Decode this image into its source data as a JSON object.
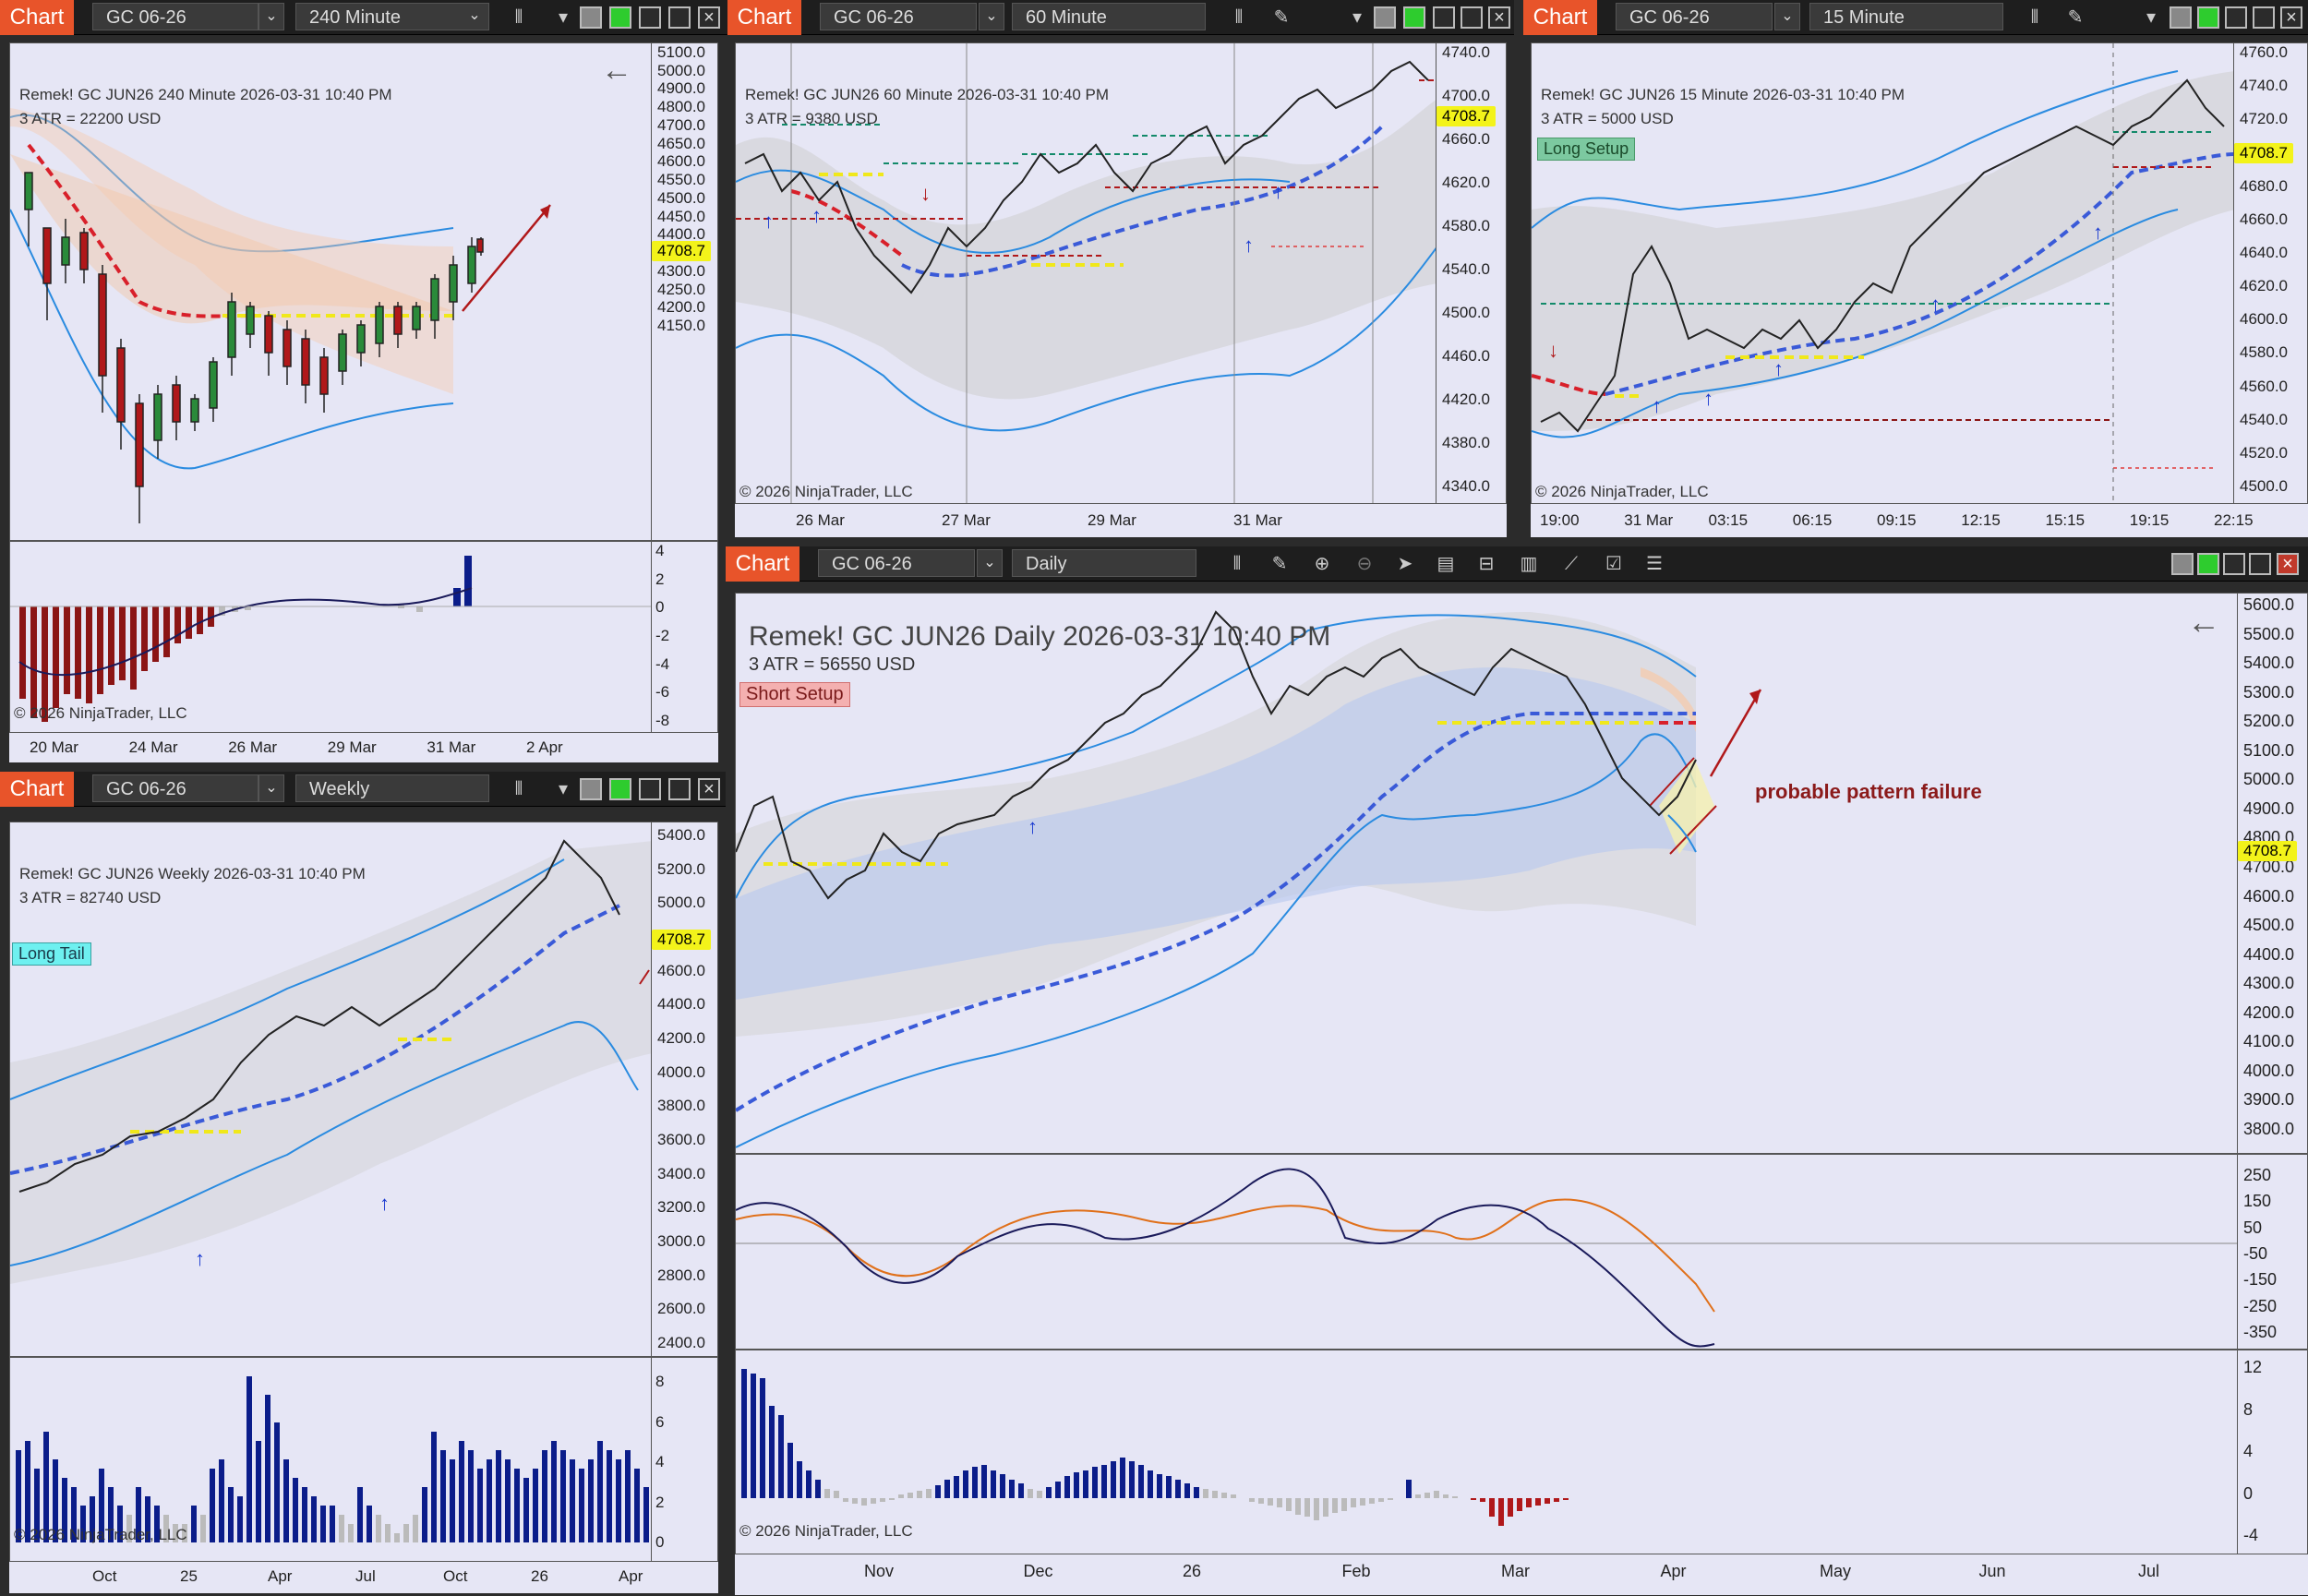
{
  "copyright": "© 2026 NinjaTrader, LLC",
  "windows": {
    "w240": {
      "tab": "Chart",
      "instrument": "GC 06-26",
      "interval": "240 Minute",
      "title": "Remek!  GC JUN26  240 Minute  2026-03-31 10:40 PM",
      "atr": "3 ATR = 22200 USD",
      "last": "4708.7",
      "price_ticks": [
        "5100.0",
        "5000.0",
        "4900.0",
        "4800.0",
        "4700.0",
        "4650.0",
        "4600.0",
        "4550.0",
        "4500.0",
        "4450.0",
        "4400.0",
        "4350.0",
        "4300.0",
        "4250.0",
        "4200.0",
        "4150.0"
      ],
      "ind_ticks": [
        "4",
        "2",
        "0",
        "-2",
        "-4",
        "-6",
        "-8"
      ],
      "dates": [
        "20 Mar",
        "24 Mar",
        "26 Mar",
        "29 Mar",
        "31 Mar",
        "2 Apr"
      ]
    },
    "w60": {
      "tab": "Chart",
      "instrument": "GC 06-26",
      "interval": "60 Minute",
      "title": "Remek!  GC JUN26  60 Minute  2026-03-31 10:40 PM",
      "atr": "3 ATR = 9380 USD",
      "last": "4708.7",
      "price_ticks": [
        "4740.0",
        "4700.0",
        "4660.0",
        "4620.0",
        "4580.0",
        "4540.0",
        "4500.0",
        "4460.0",
        "4420.0",
        "4380.0",
        "4340.0"
      ],
      "dates": [
        "26 Mar",
        "27 Mar",
        "29 Mar",
        "31 Mar"
      ]
    },
    "w15": {
      "tab": "Chart",
      "instrument": "GC 06-26",
      "interval": "15 Minute",
      "title": "Remek!  GC JUN26  15 Minute  2026-03-31 10:40 PM",
      "atr": "3 ATR = 5000 USD",
      "setup": "Long Setup",
      "last": "4708.7",
      "price_ticks": [
        "4760.0",
        "4740.0",
        "4720.0",
        "4700.0",
        "4680.0",
        "4660.0",
        "4640.0",
        "4620.0",
        "4600.0",
        "4580.0",
        "4560.0",
        "4540.0",
        "4520.0",
        "4500.0"
      ],
      "dates": [
        "19:00",
        "31 Mar",
        "03:15",
        "06:15",
        "09:15",
        "12:15",
        "15:15",
        "19:15",
        "22:15"
      ]
    },
    "wWeekly": {
      "tab": "Chart",
      "instrument": "GC 06-26",
      "interval": "Weekly",
      "title": "Remek!  GC JUN26  Weekly  2026-03-31 10:40 PM",
      "atr": "3 ATR = 82740 USD",
      "setup": "Long Tail",
      "last": "4708.7",
      "price_ticks": [
        "5400.0",
        "5200.0",
        "5000.0",
        "4800.0",
        "4600.0",
        "4400.0",
        "4200.0",
        "4000.0",
        "3800.0",
        "3600.0",
        "3400.0",
        "3200.0",
        "3000.0",
        "2800.0",
        "2600.0",
        "2400.0"
      ],
      "ind_ticks": [
        "8",
        "6",
        "4",
        "2",
        "0"
      ],
      "dates": [
        "Oct",
        "25",
        "Apr",
        "Jul",
        "Oct",
        "26",
        "Apr"
      ]
    },
    "wDaily": {
      "tab": "Chart",
      "instrument": "GC 06-26",
      "interval": "Daily",
      "title": "Remek!  GC JUN26  Daily  2026-03-31 10:40 PM",
      "atr": "3 ATR = 56550 USD",
      "setup": "Short Setup",
      "annotation": "probable pattern failure",
      "last": "4708.7",
      "price_ticks": [
        "5600.0",
        "5500.0",
        "5400.0",
        "5300.0",
        "5200.0",
        "5100.0",
        "5000.0",
        "4900.0",
        "4800.0",
        "4700.0",
        "4600.0",
        "4500.0",
        "4400.0",
        "4300.0",
        "4200.0",
        "4100.0",
        "4000.0",
        "3900.0",
        "3800.0"
      ],
      "osc_ticks": [
        "250",
        "150",
        "50",
        "-50",
        "-150",
        "-250",
        "-350"
      ],
      "ind_ticks": [
        "12",
        "8",
        "4",
        "0",
        "-4"
      ],
      "dates": [
        "Nov",
        "Dec",
        "26",
        "Feb",
        "Mar",
        "Apr",
        "May",
        "Jun",
        "Jul"
      ]
    }
  }
}
